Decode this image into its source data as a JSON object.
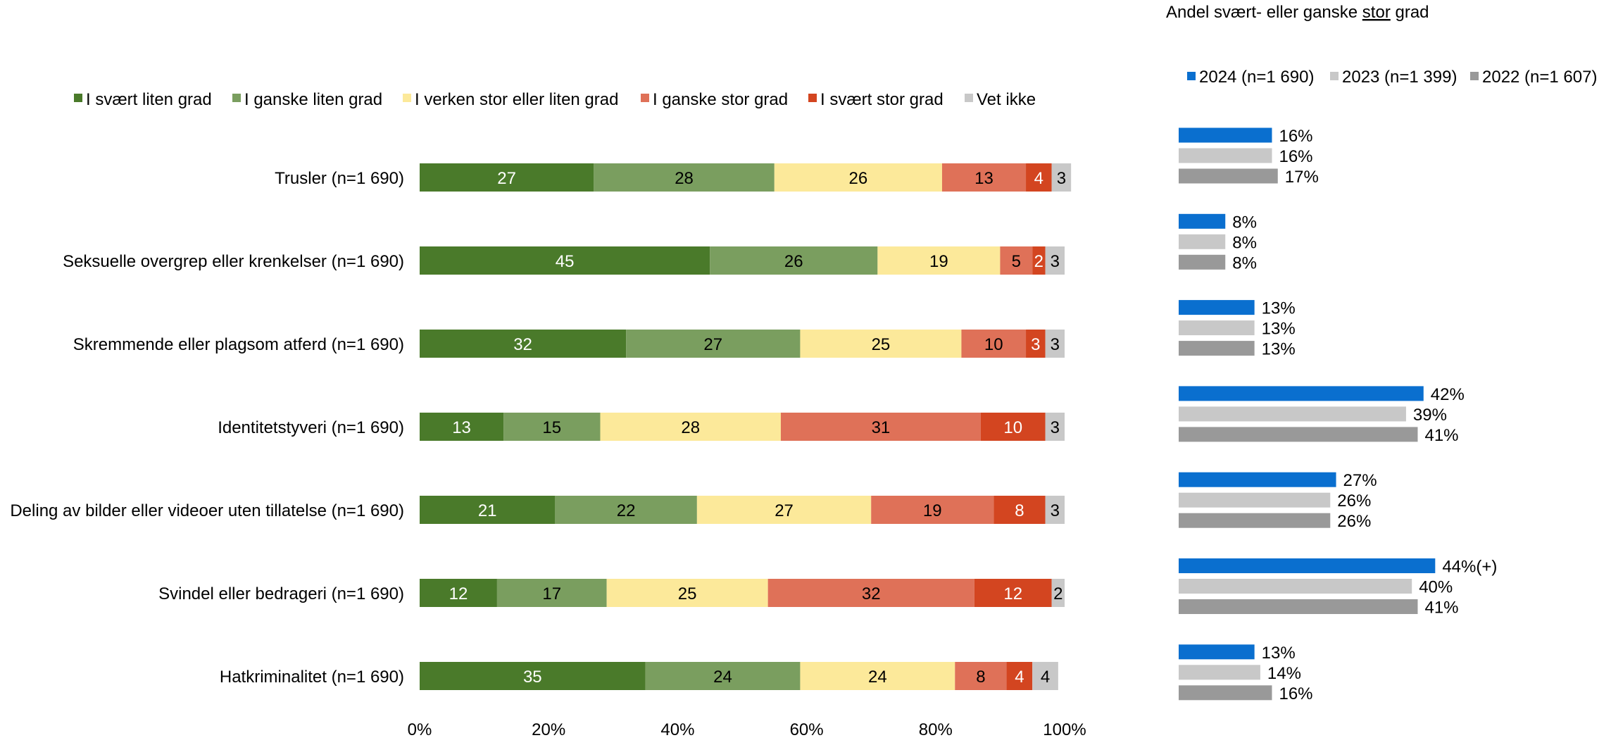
{
  "chart_data": [
    {
      "type": "bar",
      "orientation": "horizontal",
      "stacked": true,
      "title": "",
      "xlabel": "",
      "ylabel": "",
      "xlim": [
        0,
        100
      ],
      "x_ticks": [
        "0%",
        "20%",
        "40%",
        "60%",
        "80%",
        "100%"
      ],
      "legend_position": "top",
      "grid": false,
      "categories": [
        "Trusler (n=1 690)",
        "Seksuelle overgrep eller krenkelser (n=1 690)",
        "Skremmende eller plagsom atferd (n=1 690)",
        "Identitetstyveri (n=1 690)",
        "Deling av bilder eller videoer uten tillatelse (n=1 690)",
        "Svindel eller bedrageri (n=1 690)",
        "Hatkriminalitet (n=1 690)"
      ],
      "series": [
        {
          "name": "I svært liten grad",
          "color": "#4a7a2a",
          "label_color": "#ffffff",
          "values": [
            27,
            45,
            32,
            13,
            21,
            12,
            35
          ]
        },
        {
          "name": "I ganske liten grad",
          "color": "#7a9e5f",
          "label_color": "#000000",
          "values": [
            28,
            26,
            27,
            15,
            22,
            17,
            24
          ]
        },
        {
          "name": "I verken stor eller liten grad",
          "color": "#fce99a",
          "label_color": "#000000",
          "values": [
            26,
            19,
            25,
            28,
            27,
            25,
            24
          ]
        },
        {
          "name": "I ganske stor grad",
          "color": "#df7158",
          "label_color": "#000000",
          "values": [
            13,
            5,
            10,
            31,
            19,
            32,
            8
          ]
        },
        {
          "name": "I svært stor grad",
          "color": "#d34520",
          "label_color": "#ffffff",
          "values": [
            4,
            2,
            3,
            10,
            8,
            12,
            4
          ]
        },
        {
          "name": "Vet ikke",
          "color": "#c8c8c8",
          "label_color": "#000000",
          "values": [
            3,
            3,
            3,
            3,
            3,
            2,
            4
          ]
        }
      ]
    },
    {
      "type": "bar",
      "orientation": "horizontal",
      "title": "Andel svært- eller ganske stor grad",
      "title_parts": [
        "Andel svært- eller ganske ",
        "stor",
        " grad"
      ],
      "legend_position": "top",
      "grid": false,
      "value_max": 50,
      "series": [
        {
          "name": "2024 (n=1 690)",
          "color": "#0a6fcf",
          "values": [
            16,
            8,
            13,
            42,
            27,
            44,
            13
          ],
          "labels": [
            "16%",
            "8%",
            "13%",
            "42%",
            "27%",
            "44%(+)",
            "13%"
          ]
        },
        {
          "name": "2023 (n=1 399)",
          "color": "#c8c8c8",
          "values": [
            16,
            8,
            13,
            39,
            26,
            40,
            14
          ],
          "labels": [
            "16%",
            "8%",
            "13%",
            "39%",
            "26%",
            "40%",
            "14%"
          ]
        },
        {
          "name": "2022 (n=1 607)",
          "color": "#999999",
          "values": [
            17,
            8,
            13,
            41,
            26,
            41,
            16
          ],
          "labels": [
            "17%",
            "8%",
            "13%",
            "41%",
            "26%",
            "41%",
            "16%"
          ]
        }
      ]
    }
  ]
}
